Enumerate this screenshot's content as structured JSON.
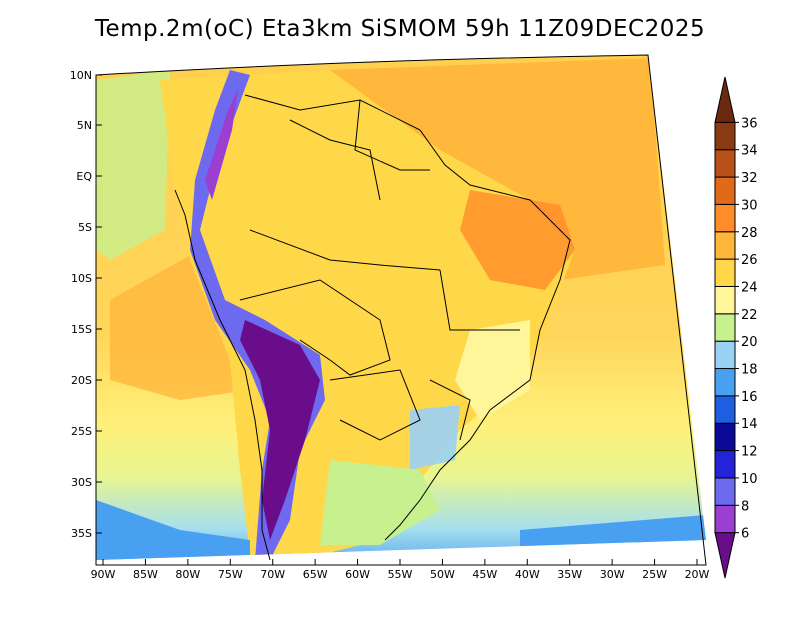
{
  "title": "Temp.2m(oC) Eta3km SiSMOM 59h 11Z09DEC2025",
  "lat_labels": [
    "10N",
    "5N",
    "EQ",
    "5S",
    "10S",
    "15S",
    "20S",
    "25S",
    "30S",
    "35S"
  ],
  "lon_labels": [
    "90W",
    "85W",
    "80W",
    "75W",
    "70W",
    "65W",
    "60W",
    "55W",
    "50W",
    "45W",
    "40W",
    "35W",
    "30W",
    "25W",
    "20W"
  ],
  "colorbar": {
    "labels": [
      "6",
      "8",
      "10",
      "12",
      "14",
      "16",
      "18",
      "20",
      "22",
      "24",
      "26",
      "28",
      "30",
      "32",
      "34",
      "36"
    ],
    "colors": [
      "#6a0d8a",
      "#9b3fd0",
      "#6d6af0",
      "#2323d8",
      "#0a0a96",
      "#1e5ee0",
      "#4aa0f0",
      "#9ad2f5",
      "#c7f08e",
      "#fff599",
      "#ffd84a",
      "#ffb43a",
      "#ff8c28",
      "#e06a18",
      "#b8501a",
      "#8a3a12",
      "#6b2a10"
    ]
  }
}
